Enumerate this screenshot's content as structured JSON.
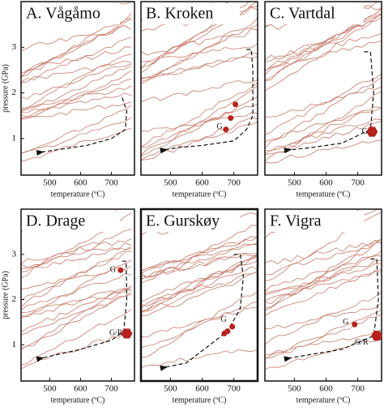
{
  "chart_data": [
    {
      "type": "scatter",
      "title": "A. Vågåmo",
      "xlabel": "temperature (ºC)",
      "ylabel": "pressure (GPa)",
      "xlim": [
        407,
        775
      ],
      "ylim": [
        0.2,
        4
      ],
      "xticks": [
        500,
        600,
        700
      ],
      "yticks": [
        1,
        2,
        3
      ],
      "path": {
        "x": [
          735,
          750,
          745,
          700,
          620,
          520,
          470
        ],
        "y": [
          1.9,
          1.6,
          1.2,
          1.0,
          0.85,
          0.75,
          0.7
        ]
      },
      "points": {
        "x": [],
        "y": [],
        "marker": []
      },
      "annotations": [],
      "color": "#b5221c",
      "contour_color": "#c97a6a"
    },
    {
      "type": "scatter",
      "title": "B. Kroken",
      "xlabel": "temperature (ºC)",
      "xlim": [
        407,
        775
      ],
      "ylim": [
        0.2,
        4
      ],
      "xticks": [
        500,
        600,
        700
      ],
      "path": {
        "x": [
          740,
          755,
          760,
          760,
          740,
          700,
          600,
          520,
          480
        ],
        "y": [
          2.95,
          2.95,
          2.5,
          1.5,
          1.2,
          0.95,
          0.85,
          0.8,
          0.75
        ]
      },
      "points": {
        "x": [
          705,
          690,
          675
        ],
        "y": [
          1.75,
          1.45,
          1.2
        ],
        "marker": [
          "circle",
          "circle",
          "circle"
        ]
      },
      "annotations": [
        {
          "text": "G",
          "x": 655,
          "y": 1.25
        }
      ],
      "color": "#b5221c",
      "contour_color": "#c97a6a"
    },
    {
      "type": "scatter",
      "title": "C. Vartdal",
      "xlabel": "temperature (ºC)",
      "xlim": [
        407,
        775
      ],
      "ylim": [
        0.2,
        4
      ],
      "xticks": [
        500,
        600,
        700
      ],
      "path": {
        "x": [
          720,
          740,
          750,
          740,
          650,
          550,
          480
        ],
        "y": [
          2.9,
          2.9,
          2.0,
          1.2,
          0.9,
          0.8,
          0.75
        ]
      },
      "points": {
        "x": [
          745
        ],
        "y": [
          1.15
        ],
        "marker": [
          "hexagon"
        ]
      },
      "annotations": [
        {
          "text": "G",
          "x": 722,
          "y": 1.15
        }
      ],
      "color": "#b5221c",
      "contour_color": "#c97a6a"
    },
    {
      "type": "scatter",
      "title": "D. Drage",
      "xlabel": "temperature (ºC)",
      "ylabel": "pressure (GPa)",
      "xlim": [
        407,
        775
      ],
      "ylim": [
        0.2,
        4
      ],
      "xticks": [
        500,
        600,
        700
      ],
      "yticks": [
        1,
        2,
        3
      ],
      "path": {
        "x": [
          735,
          748,
          750,
          740,
          700,
          600,
          470
        ],
        "y": [
          2.85,
          2.85,
          2.0,
          1.3,
          1.1,
          0.9,
          0.7
        ]
      },
      "points": {
        "x": [
          730,
          750
        ],
        "y": [
          2.65,
          1.25
        ],
        "marker": [
          "circle",
          "hexagon"
        ]
      },
      "annotations": [
        {
          "text": "G",
          "x": 705,
          "y": 2.65
        },
        {
          "text": "G/R",
          "x": 715,
          "y": 1.25
        }
      ],
      "color": "#b5221c",
      "contour_color": "#c97a6a"
    },
    {
      "type": "scatter",
      "title": "E. Gurskøy",
      "xlabel": "temperature (ºC)",
      "highlight": true,
      "xlim": [
        407,
        775
      ],
      "ylim": [
        0.2,
        4
      ],
      "xticks": [
        500,
        600,
        700
      ],
      "path": {
        "x": [
          700,
          720,
          730,
          720,
          680,
          550,
          480
        ],
        "y": [
          3.0,
          3.0,
          2.5,
          1.8,
          1.3,
          0.6,
          0.5
        ]
      },
      "points": {
        "x": [
          695,
          680,
          670
        ],
        "y": [
          1.4,
          1.3,
          1.25
        ],
        "marker": [
          "circle",
          "circle",
          "circle"
        ]
      },
      "annotations": [
        {
          "text": "G",
          "x": 668,
          "y": 1.55
        }
      ],
      "color": "#b5221c",
      "contour_color": "#c97a6a"
    },
    {
      "type": "scatter",
      "title": "F. Vigra",
      "xlabel": "temperature (ºC)",
      "xlim": [
        407,
        775
      ],
      "ylim": [
        0.2,
        4
      ],
      "xticks": [
        500,
        600,
        700
      ],
      "path": {
        "x": [
          740,
          760,
          765,
          750,
          650,
          520,
          480
        ],
        "y": [
          2.9,
          2.9,
          2.0,
          1.2,
          0.9,
          0.75,
          0.7
        ]
      },
      "points": {
        "x": [
          690,
          760
        ],
        "y": [
          1.45,
          1.2
        ],
        "marker": [
          "circle",
          "hexagon"
        ]
      },
      "annotations": [
        {
          "text": "G",
          "x": 662,
          "y": 1.5
        },
        {
          "text": "G/R",
          "x": 712,
          "y": 1.05
        }
      ],
      "color": "#b5221c",
      "contour_color": "#c97a6a"
    }
  ]
}
